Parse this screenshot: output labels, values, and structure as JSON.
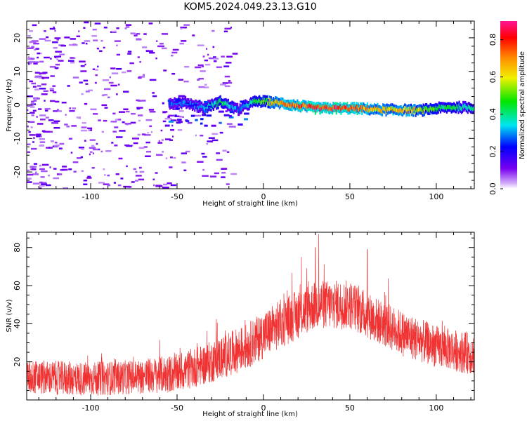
{
  "title": "KOM5.2024.049.23.13.G10",
  "chart_data": [
    {
      "type": "heatmap",
      "name": "spectrogram",
      "xlabel": "Height of straight line (km)",
      "ylabel": "Frequency (Hz)",
      "xlim": [
        -137,
        122
      ],
      "ylim": [
        -25,
        25
      ],
      "x_ticks": [
        -100,
        -50,
        0,
        50,
        100
      ],
      "y_ticks": [
        -20,
        -10,
        0,
        10,
        20
      ],
      "colorbar": {
        "label": "Normalized spectral amplitude",
        "range": [
          0.0,
          0.9
        ],
        "ticks": [
          "0.0",
          "0.2",
          "0.4",
          "0.6",
          "0.8"
        ]
      },
      "trace": [
        {
          "x": -55,
          "y": 0.5,
          "a": 0.28
        },
        {
          "x": -45,
          "y": 0.7,
          "a": 0.3
        },
        {
          "x": -35,
          "y": -1.0,
          "a": 0.32
        },
        {
          "x": -25,
          "y": 1.0,
          "a": 0.45
        },
        {
          "x": -15,
          "y": -1.5,
          "a": 0.3
        },
        {
          "x": -10,
          "y": 0.0,
          "a": 0.35
        },
        {
          "x": -5,
          "y": 1.0,
          "a": 0.45
        },
        {
          "x": 0,
          "y": 1.0,
          "a": 0.55
        },
        {
          "x": 10,
          "y": 0.5,
          "a": 0.7
        },
        {
          "x": 20,
          "y": -0.3,
          "a": 0.75
        },
        {
          "x": 30,
          "y": -1.0,
          "a": 0.85
        },
        {
          "x": 40,
          "y": -1.0,
          "a": 0.85
        },
        {
          "x": 50,
          "y": -1.0,
          "a": 0.8
        },
        {
          "x": 60,
          "y": -1.2,
          "a": 0.7
        },
        {
          "x": 70,
          "y": -1.5,
          "a": 0.65
        },
        {
          "x": 80,
          "y": -1.5,
          "a": 0.7
        },
        {
          "x": 90,
          "y": -1.7,
          "a": 0.6
        },
        {
          "x": 100,
          "y": -1.0,
          "a": 0.45
        },
        {
          "x": 110,
          "y": -0.7,
          "a": 0.45
        },
        {
          "x": 122,
          "y": -0.8,
          "a": 0.4
        }
      ]
    },
    {
      "type": "line",
      "name": "snr",
      "xlabel": "Height of straight line (km)",
      "ylabel": "SNR (v/v)",
      "xlim": [
        -137,
        122
      ],
      "ylim": [
        0,
        88
      ],
      "x_ticks": [
        -100,
        -50,
        0,
        50,
        100
      ],
      "y_ticks": [
        20,
        40,
        60,
        80
      ],
      "color": "#f03232",
      "envelope": [
        {
          "x": -137,
          "mean": 12,
          "spread": 9
        },
        {
          "x": -100,
          "mean": 11,
          "spread": 9
        },
        {
          "x": -75,
          "mean": 12,
          "spread": 9
        },
        {
          "x": -50,
          "mean": 14,
          "spread": 10
        },
        {
          "x": -30,
          "mean": 20,
          "spread": 11
        },
        {
          "x": -10,
          "mean": 28,
          "spread": 12
        },
        {
          "x": 10,
          "mean": 40,
          "spread": 13
        },
        {
          "x": 30,
          "mean": 50,
          "spread": 13
        },
        {
          "x": 50,
          "mean": 50,
          "spread": 13
        },
        {
          "x": 65,
          "mean": 42,
          "spread": 12
        },
        {
          "x": 80,
          "mean": 35,
          "spread": 12
        },
        {
          "x": 100,
          "mean": 28,
          "spread": 11
        },
        {
          "x": 122,
          "mean": 24,
          "spread": 11
        }
      ],
      "peaks": [
        {
          "x": 32,
          "y": 87
        },
        {
          "x": 60,
          "y": 79
        },
        {
          "x": 30,
          "y": 80
        },
        {
          "x": 22,
          "y": 75
        }
      ]
    }
  ]
}
